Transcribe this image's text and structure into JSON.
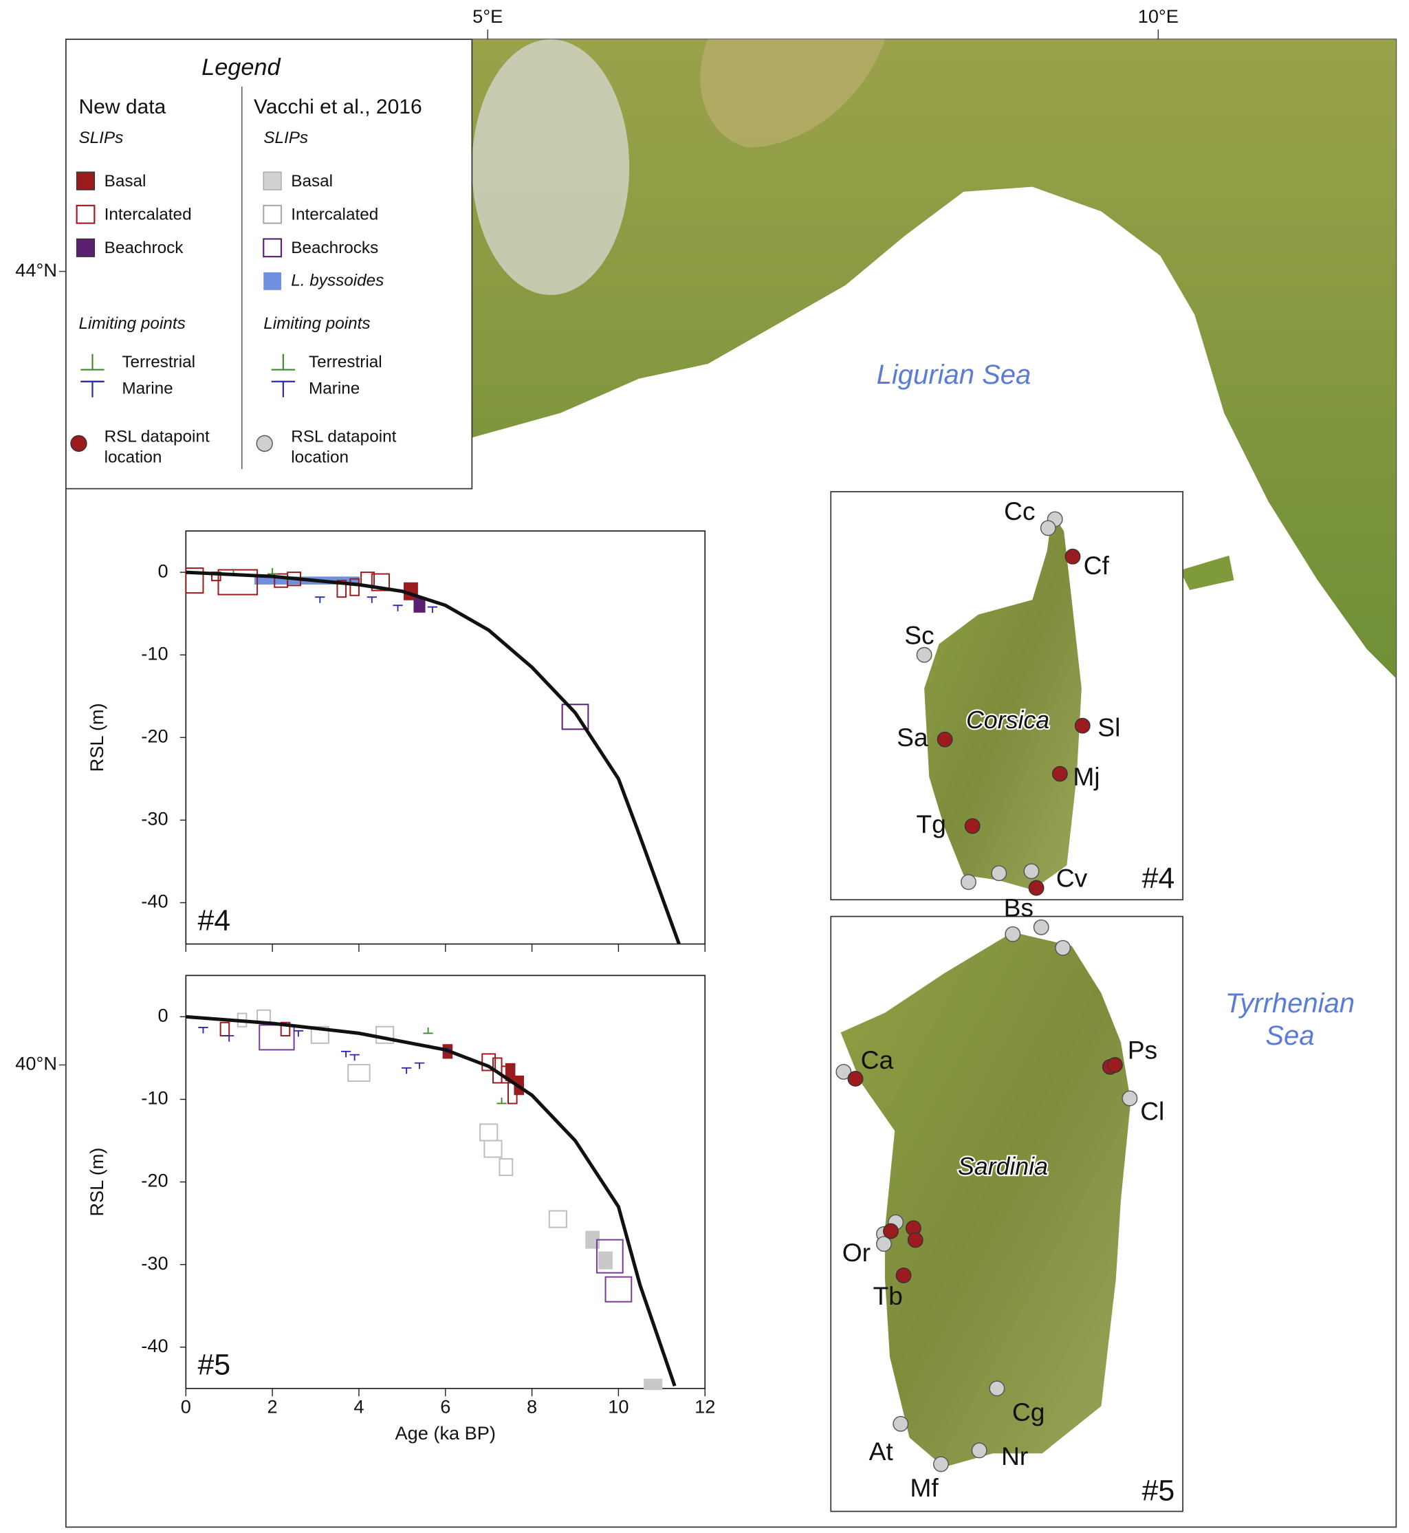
{
  "map": {
    "lon_ticks": [
      "5°E",
      "10°E"
    ],
    "lat_ticks": [
      "44°N",
      "40°N"
    ],
    "seas": {
      "ligurian": "Ligurian Sea",
      "tyrrhenian": [
        "Tyrrhenian",
        "Sea"
      ]
    },
    "islands": [
      "Corsica",
      "Sardinia"
    ],
    "insets": [
      "#4",
      "#5"
    ],
    "sites": [
      "Cc",
      "Cf",
      "Sc",
      "Sa",
      "Sl",
      "Mj",
      "Tg",
      "Cv",
      "Bs",
      "Ps",
      "Ca",
      "Cl",
      "Or",
      "Tb",
      "Cg",
      "At",
      "Nr",
      "Mf"
    ]
  },
  "legend": {
    "title": "Legend",
    "columns": [
      {
        "heading": "New data",
        "slips_heading": "SLIPs",
        "slips": [
          "Basal",
          "Intercalated",
          "Beachrock"
        ],
        "limits_heading": "Limiting points",
        "limits": [
          "Terrestrial",
          "Marine"
        ],
        "location": [
          "RSL datapoint",
          "location"
        ]
      },
      {
        "heading": "Vacchi et al., 2016",
        "slips_heading": "SLIPs",
        "slips": [
          "Basal",
          "Intercalated",
          "Beachrocks",
          "L. byssoides"
        ],
        "limits_heading": "Limiting points",
        "limits": [
          "Terrestrial",
          "Marine"
        ],
        "location": [
          "RSL datapoint",
          "location"
        ]
      }
    ]
  },
  "chart_data": [
    {
      "type": "scatter",
      "label": "#4",
      "ylabel": "RSL (m)",
      "xlim": [
        0,
        12
      ],
      "ylim": [
        -45,
        5
      ],
      "xticks": [
        0,
        2,
        4,
        6,
        8,
        10,
        12
      ],
      "yticks": [
        0,
        -10,
        -20,
        -30,
        -40
      ],
      "xtick_labels": false,
      "series": [
        {
          "type": "box",
          "color": "#6f8fe0",
          "filled": true,
          "x": [
            2.8
          ],
          "values": [
            -1
          ],
          "xerr": [
            1.2
          ],
          "yerr": [
            0.4
          ]
        },
        {
          "type": "box",
          "color": "#9b1b1e",
          "filled": false,
          "x": [
            0.2,
            1.2,
            0.7,
            2.2,
            2.5,
            3.6,
            3.9,
            4.2,
            4.5
          ],
          "values": [
            -1,
            -1.2,
            -0.5,
            -1,
            -0.8,
            -2,
            -1.8,
            -0.8,
            -1.2
          ],
          "xerr": [
            0.2,
            0.45,
            0.1,
            0.15,
            0.15,
            0.1,
            0.1,
            0.15,
            0.2
          ],
          "yerr": [
            1.5,
            1.5,
            0.5,
            0.8,
            0.8,
            1,
            1,
            0.8,
            1
          ]
        },
        {
          "type": "box",
          "color": "#9b1b1e",
          "filled": true,
          "x": [
            5.2
          ],
          "values": [
            -2.3
          ],
          "xerr": [
            0.15
          ],
          "yerr": [
            1
          ]
        },
        {
          "type": "box",
          "color": "#5a1f6e",
          "filled": true,
          "x": [
            5.4
          ],
          "values": [
            -4
          ],
          "xerr": [
            0.12
          ],
          "yerr": [
            0.8
          ]
        },
        {
          "type": "box",
          "color": "#5a1f6e",
          "filled": false,
          "x": [
            9
          ],
          "values": [
            -17.5
          ],
          "xerr": [
            0.3
          ],
          "yerr": [
            1.5
          ]
        },
        {
          "type": "upper-limit",
          "color": "#2a2aa8",
          "x": [
            3.1,
            4.3,
            4.9,
            5.7
          ],
          "values": [
            -3,
            -3,
            -4,
            -4.2
          ]
        },
        {
          "type": "lower-limit",
          "color": "#3a8a2a",
          "x": [
            1.1,
            2
          ],
          "values": [
            -0.3,
            -0.2
          ]
        },
        {
          "type": "line",
          "color": "#111111",
          "x": [
            0,
            2,
            4,
            5,
            6,
            7,
            8,
            9,
            10,
            10.5,
            11.4
          ],
          "values": [
            0,
            -0.5,
            -1.5,
            -2.3,
            -4,
            -7,
            -11.5,
            -17,
            -25,
            -32,
            -45
          ]
        }
      ]
    },
    {
      "type": "scatter",
      "label": "#5",
      "ylabel": "RSL (m)",
      "xlabel": "Age (ka BP)",
      "xlim": [
        0,
        12
      ],
      "ylim": [
        -45,
        5
      ],
      "xticks": [
        0,
        2,
        4,
        6,
        8,
        10,
        12
      ],
      "yticks": [
        0,
        -10,
        -20,
        -30,
        -40
      ],
      "xtick_labels": true,
      "series": [
        {
          "type": "box",
          "color": "#c8c8c8",
          "filled": true,
          "x": [
            9.4,
            9.7,
            10.8
          ],
          "values": [
            -27,
            -29.5,
            -44.5
          ],
          "xerr": [
            0.15,
            0.15,
            0.2
          ],
          "yerr": [
            1,
            1,
            0.6
          ]
        },
        {
          "type": "box",
          "color": "#bdbdbd",
          "filled": false,
          "x": [
            1.3,
            1.8,
            3.1,
            4,
            4.6,
            7,
            7.1,
            7.4,
            8.6
          ],
          "values": [
            -0.4,
            0,
            -2.2,
            -6.8,
            -2.2,
            -14,
            -16,
            -18.2,
            -24.5
          ],
          "xerr": [
            0.1,
            0.15,
            0.2,
            0.25,
            0.2,
            0.2,
            0.2,
            0.15,
            0.2
          ],
          "yerr": [
            0.8,
            0.8,
            1,
            1,
            1,
            1,
            1,
            1,
            1
          ]
        },
        {
          "type": "box",
          "color": "#7a3a9a",
          "filled": false,
          "x": [
            2.1,
            9.8,
            10
          ],
          "values": [
            -2.5,
            -29,
            -33
          ],
          "xerr": [
            0.4,
            0.3,
            0.3
          ],
          "yerr": [
            1.5,
            2,
            1.5
          ]
        },
        {
          "type": "box",
          "color": "#9b1b1e",
          "filled": false,
          "x": [
            0.9,
            2.3,
            7,
            7.2,
            7.4,
            7.55
          ],
          "values": [
            -1.5,
            -1.5,
            -5.5,
            -6.5,
            -7,
            -9
          ],
          "xerr": [
            0.1,
            0.1,
            0.15,
            0.1,
            0.1,
            0.1
          ],
          "yerr": [
            0.8,
            0.8,
            1,
            1.5,
            1,
            1.5
          ]
        },
        {
          "type": "box",
          "color": "#9b1b1e",
          "filled": true,
          "x": [
            6.05,
            7.5,
            7.7
          ],
          "values": [
            -4.2,
            -6.7,
            -8.3
          ],
          "xerr": [
            0.1,
            0.1,
            0.1
          ],
          "yerr": [
            0.8,
            1,
            1.1
          ]
        },
        {
          "type": "upper-limit",
          "color": "#2a2aa8",
          "x": [
            0.4,
            1,
            2.6,
            3.7,
            3.9,
            5.1,
            5.4,
            6
          ],
          "values": [
            -1.3,
            -2.3,
            -1.7,
            -4.2,
            -4.6,
            -6.2,
            -5.6,
            -3.8
          ]
        },
        {
          "type": "lower-limit",
          "color": "#3a8a2a",
          "x": [
            5.6,
            7.3
          ],
          "values": [
            -2,
            -10.5
          ]
        },
        {
          "type": "line",
          "color": "#111111",
          "x": [
            0,
            2,
            4,
            6,
            7,
            8,
            9,
            10,
            10.5,
            11.3
          ],
          "values": [
            0,
            -0.8,
            -2,
            -4,
            -6,
            -9.5,
            -15,
            -23,
            -32.5,
            -44.7
          ]
        }
      ]
    }
  ]
}
